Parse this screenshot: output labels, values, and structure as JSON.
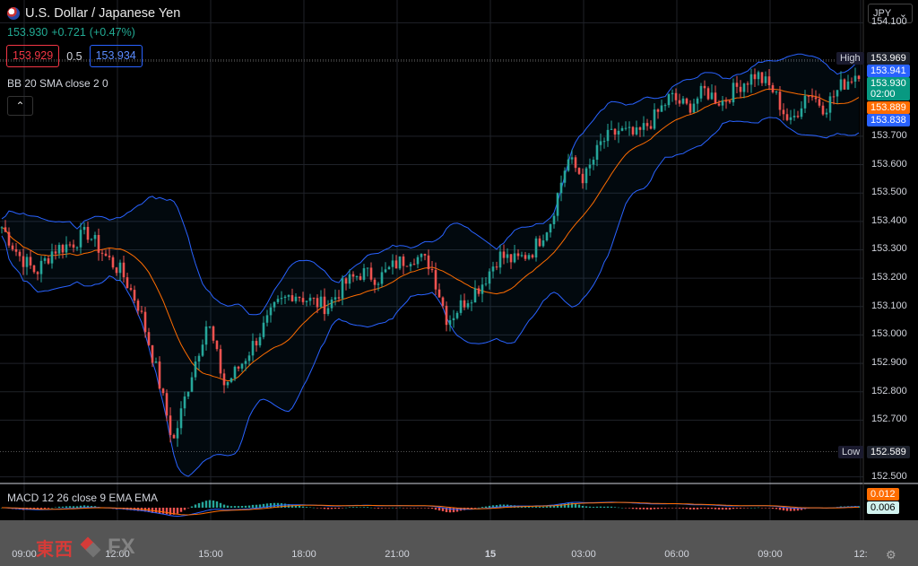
{
  "header": {
    "flag_icon": "us-jp-flag-icon",
    "title": "U.S. Dollar / Japanese Yen",
    "last": "153.930",
    "change": "+0.721",
    "change_pct": "(+0.47%)",
    "bid": "153.929",
    "spread": "0.5",
    "ask": "153.934"
  },
  "indicators": {
    "bb_label": "BB 20 SMA close 2 0",
    "macd_label": "MACD 12 26 close 9 EMA EMA"
  },
  "currency_button": "JPY",
  "price_axis": {
    "ticks": [
      "154.100",
      "153.700",
      "153.600",
      "153.500",
      "153.400",
      "153.300",
      "153.200",
      "153.100",
      "153.000",
      "152.900",
      "152.800",
      "152.700",
      "152.500"
    ],
    "high_label": "High",
    "high_value": "153.969",
    "low_label": "Low",
    "low_value": "152.589",
    "upper_band": "153.941",
    "last_price": "153.930",
    "countdown": "02:00",
    "basis": "153.889",
    "lower_band": "153.838",
    "macd_value": "0.012",
    "signal_value": "0.006"
  },
  "time_axis": {
    "labels": [
      "09:00",
      "12:00",
      "15:00",
      "18:00",
      "21:00",
      "15",
      "03:00",
      "06:00",
      "09:00",
      "12:"
    ]
  },
  "logo": {
    "cjk": "東西",
    "fx": "FX"
  },
  "colors": {
    "up": "#26a69a",
    "down": "#ef5350",
    "band": "#2962ff",
    "basis": "#ff6d00",
    "bid": "#f23645",
    "ask": "#2962ff"
  },
  "chart_data": {
    "type": "candlestick",
    "symbol": "USDJPY",
    "ylim": [
      152.48,
      154.18
    ],
    "x": [
      "09:00",
      "12:00",
      "15:00",
      "18:00",
      "21:00",
      "15",
      "03:00",
      "06:00",
      "09:00",
      "12:"
    ],
    "close_path": [
      153.38,
      153.28,
      153.22,
      153.3,
      153.32,
      153.36,
      153.28,
      153.22,
      153.1,
      152.88,
      152.62,
      152.85,
      153.05,
      152.82,
      152.9,
      153.0,
      153.1,
      153.15,
      153.12,
      153.1,
      153.18,
      153.22,
      153.2,
      153.25,
      153.28,
      153.25,
      153.05,
      153.12,
      153.18,
      153.28,
      153.26,
      153.3,
      153.4,
      153.62,
      153.55,
      153.68,
      153.72,
      153.7,
      153.76,
      153.84,
      153.8,
      153.86,
      153.82,
      153.88,
      153.92,
      153.86,
      153.74,
      153.86,
      153.8,
      153.88,
      153.93
    ],
    "high": 153.969,
    "low": 152.589,
    "bollinger": {
      "upper": "153.941",
      "basis": "153.889",
      "lower": "153.838"
    },
    "macd": {
      "macd": "0.012",
      "signal": "0.006"
    }
  }
}
